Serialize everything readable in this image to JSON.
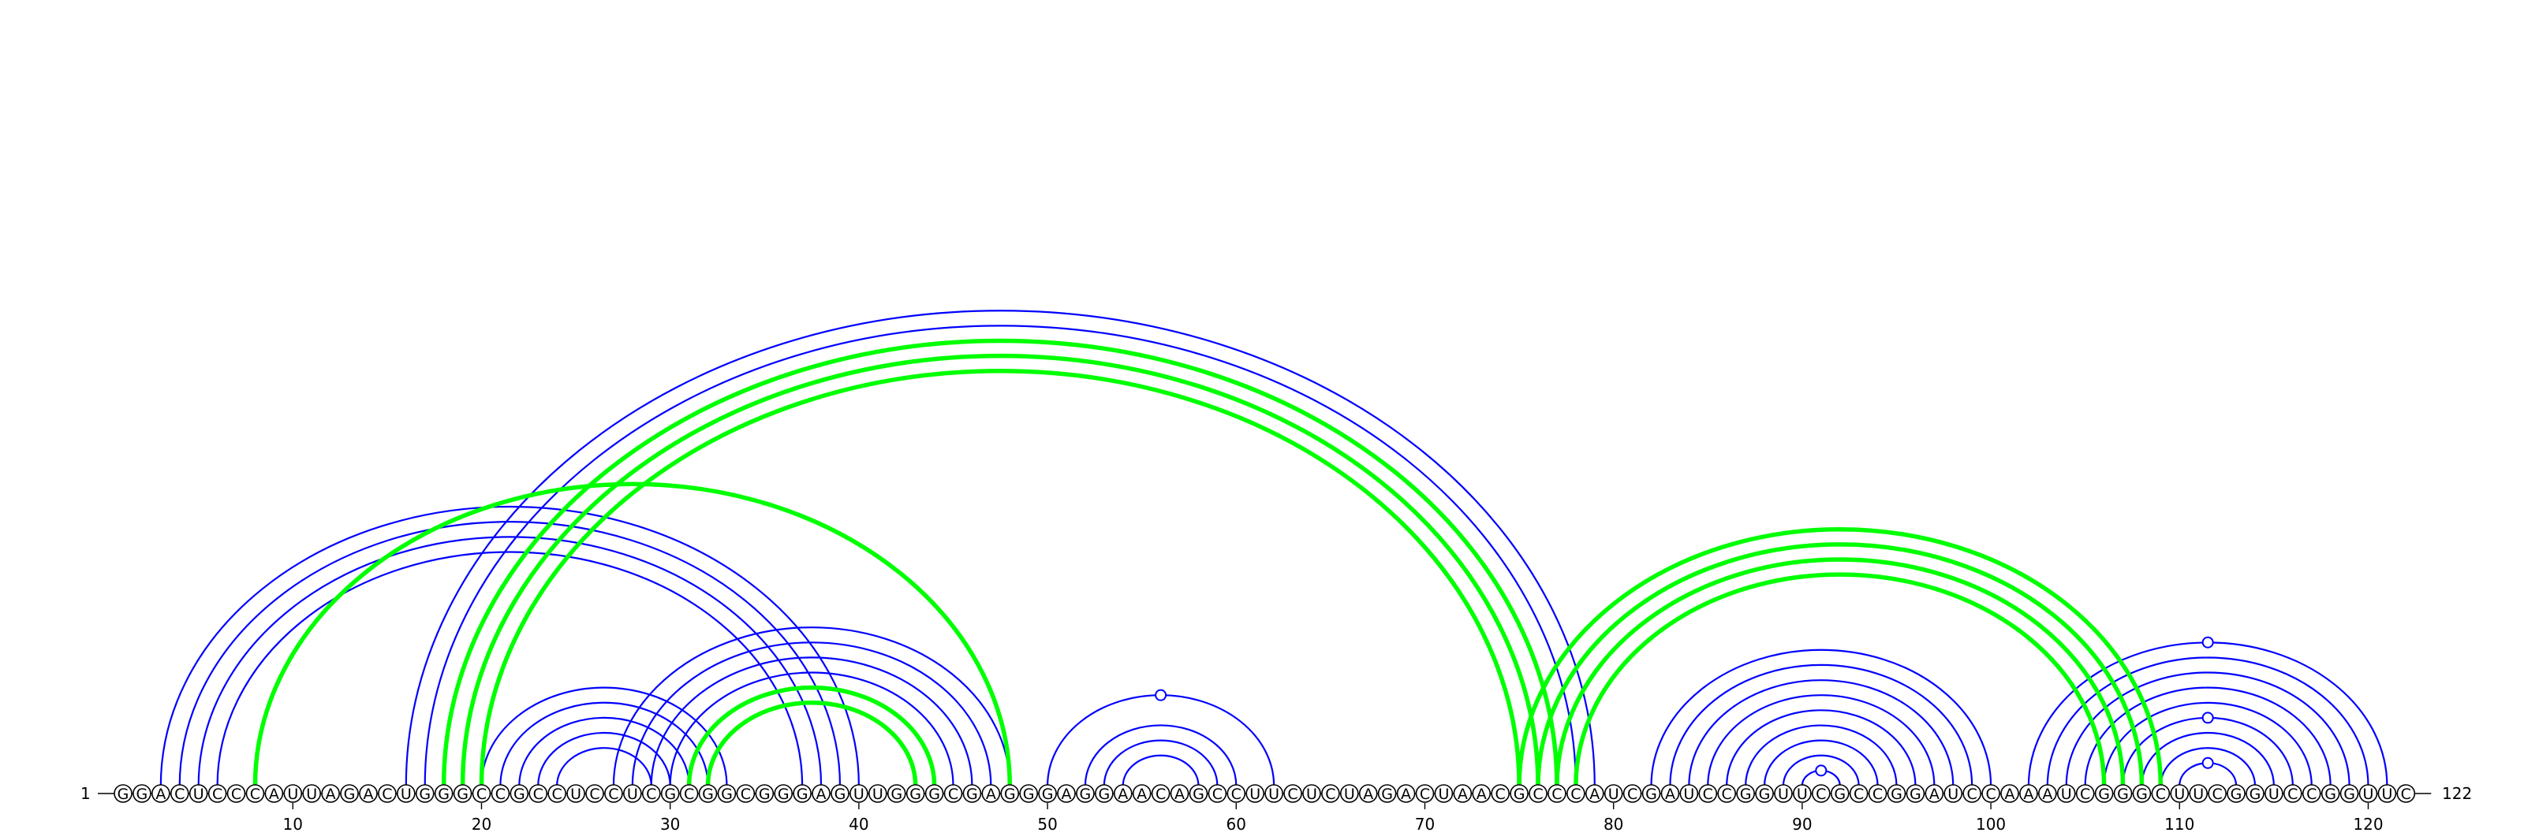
{
  "sequence": "GGACUCCCAUUAGACUGGGCCGCCUCCUCGCGGCGGGAGUUGGGCGAGGGAGGAACAGCCUUCUCUAGACUAACGCCCAUCGAUCCGGUUCGCCGGAUCCAAAUCGGGCUUCGGUCCGGUUC",
  "start_label": "1",
  "end_label": "122",
  "tick_labels": [
    "10",
    "20",
    "30",
    "40",
    "50",
    "60",
    "70",
    "80",
    "90",
    "100",
    "110",
    "120"
  ],
  "colors": {
    "blue": "#0000ff",
    "green": "#00ff00",
    "nucleotide_outline": "#000000"
  },
  "arcs": [
    {
      "i": 3,
      "j": 40,
      "color": "blue"
    },
    {
      "i": 4,
      "j": 39,
      "color": "blue"
    },
    {
      "i": 5,
      "j": 38,
      "color": "blue"
    },
    {
      "i": 6,
      "j": 37,
      "color": "blue"
    },
    {
      "i": 8,
      "j": 48,
      "color": "green"
    },
    {
      "i": 16,
      "j": 79,
      "color": "blue"
    },
    {
      "i": 17,
      "j": 78,
      "color": "blue"
    },
    {
      "i": 18,
      "j": 77,
      "color": "green"
    },
    {
      "i": 19,
      "j": 76,
      "color": "green"
    },
    {
      "i": 20,
      "j": 75,
      "color": "green"
    },
    {
      "i": 20,
      "j": 33,
      "color": "blue"
    },
    {
      "i": 21,
      "j": 32,
      "color": "blue"
    },
    {
      "i": 22,
      "j": 31,
      "color": "blue"
    },
    {
      "i": 23,
      "j": 30,
      "color": "blue"
    },
    {
      "i": 24,
      "j": 29,
      "color": "blue"
    },
    {
      "i": 27,
      "j": 48,
      "color": "blue"
    },
    {
      "i": 28,
      "j": 47,
      "color": "blue"
    },
    {
      "i": 29,
      "j": 46,
      "color": "blue"
    },
    {
      "i": 30,
      "j": 45,
      "color": "blue"
    },
    {
      "i": 31,
      "j": 44,
      "color": "green"
    },
    {
      "i": 32,
      "j": 43,
      "color": "green"
    },
    {
      "i": 50,
      "j": 62,
      "color": "blue"
    },
    {
      "i": 52,
      "j": 60,
      "color": "blue"
    },
    {
      "i": 53,
      "j": 59,
      "color": "blue"
    },
    {
      "i": 54,
      "j": 58,
      "color": "blue"
    },
    {
      "i": 75,
      "j": 109,
      "color": "green"
    },
    {
      "i": 76,
      "j": 108,
      "color": "green"
    },
    {
      "i": 77,
      "j": 107,
      "color": "green"
    },
    {
      "i": 78,
      "j": 106,
      "color": "green"
    },
    {
      "i": 82,
      "j": 100,
      "color": "blue"
    },
    {
      "i": 83,
      "j": 99,
      "color": "blue"
    },
    {
      "i": 84,
      "j": 98,
      "color": "blue"
    },
    {
      "i": 85,
      "j": 97,
      "color": "blue"
    },
    {
      "i": 86,
      "j": 96,
      "color": "blue"
    },
    {
      "i": 87,
      "j": 95,
      "color": "blue"
    },
    {
      "i": 88,
      "j": 94,
      "color": "blue"
    },
    {
      "i": 89,
      "j": 93,
      "color": "blue"
    },
    {
      "i": 90,
      "j": 92,
      "color": "blue"
    },
    {
      "i": 102,
      "j": 121,
      "color": "blue"
    },
    {
      "i": 103,
      "j": 120,
      "color": "blue"
    },
    {
      "i": 104,
      "j": 119,
      "color": "blue"
    },
    {
      "i": 105,
      "j": 118,
      "color": "blue"
    },
    {
      "i": 106,
      "j": 117,
      "color": "blue"
    },
    {
      "i": 107,
      "j": 116,
      "color": "blue"
    },
    {
      "i": 108,
      "j": 115,
      "color": "blue"
    },
    {
      "i": 109,
      "j": 114,
      "color": "blue"
    },
    {
      "i": 110,
      "j": 113,
      "color": "blue"
    }
  ],
  "loop_markers": [
    {
      "i": 50,
      "j": 62
    },
    {
      "i": 90,
      "j": 92
    },
    {
      "i": 102,
      "j": 121
    },
    {
      "i": 107,
      "j": 116
    },
    {
      "i": 110,
      "j": 113
    }
  ]
}
